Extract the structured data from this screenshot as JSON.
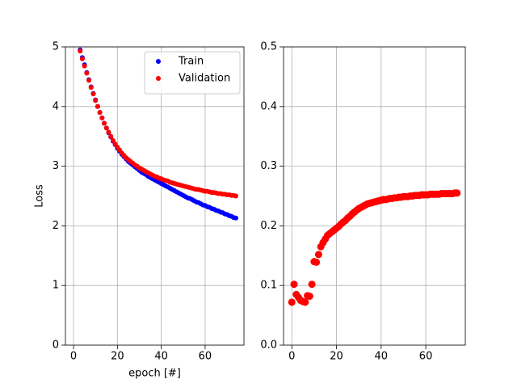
{
  "chart_data": [
    {
      "type": "scatter",
      "xlabel": "epoch [#]",
      "ylabel": "Loss",
      "x": [
        3,
        4,
        5,
        6,
        7,
        8,
        9,
        10,
        11,
        12,
        13,
        14,
        15,
        16,
        17,
        18,
        19,
        20,
        21,
        22,
        23,
        24,
        25,
        26,
        27,
        28,
        29,
        30,
        31,
        32,
        33,
        34,
        35,
        36,
        37,
        38,
        39,
        40,
        41,
        42,
        43,
        44,
        45,
        46,
        47,
        48,
        49,
        50,
        51,
        52,
        53,
        54,
        55,
        56,
        57,
        58,
        59,
        60,
        61,
        62,
        63,
        64,
        65,
        66,
        67,
        68,
        69,
        70,
        71,
        72,
        73,
        74
      ],
      "series": [
        {
          "name": "Train",
          "color": "#0000ff",
          "values": [
            4.95,
            4.82,
            4.7,
            4.57,
            4.45,
            4.33,
            4.22,
            4.11,
            4.0,
            3.9,
            3.81,
            3.72,
            3.64,
            3.56,
            3.49,
            3.42,
            3.36,
            3.3,
            3.25,
            3.2,
            3.16,
            3.12,
            3.08,
            3.05,
            3.02,
            2.99,
            2.96,
            2.93,
            2.9,
            2.88,
            2.86,
            2.83,
            2.81,
            2.79,
            2.77,
            2.75,
            2.73,
            2.71,
            2.69,
            2.67,
            2.65,
            2.63,
            2.61,
            2.59,
            2.57,
            2.55,
            2.53,
            2.51,
            2.49,
            2.47,
            2.46,
            2.44,
            2.42,
            2.4,
            2.39,
            2.37,
            2.35,
            2.34,
            2.32,
            2.31,
            2.29,
            2.28,
            2.26,
            2.25,
            2.23,
            2.22,
            2.2,
            2.19,
            2.17,
            2.16,
            2.14,
            2.13
          ]
        },
        {
          "name": "Validation",
          "color": "#ff0000",
          "values": [
            4.93,
            4.8,
            4.68,
            4.56,
            4.44,
            4.32,
            4.21,
            4.1,
            4.0,
            3.9,
            3.81,
            3.72,
            3.64,
            3.57,
            3.5,
            3.43,
            3.37,
            3.32,
            3.27,
            3.22,
            3.18,
            3.14,
            3.11,
            3.08,
            3.05,
            3.02,
            3.0,
            2.97,
            2.95,
            2.93,
            2.91,
            2.89,
            2.87,
            2.85,
            2.83,
            2.82,
            2.8,
            2.79,
            2.77,
            2.76,
            2.75,
            2.73,
            2.72,
            2.71,
            2.7,
            2.69,
            2.68,
            2.67,
            2.66,
            2.65,
            2.64,
            2.63,
            2.62,
            2.61,
            2.61,
            2.6,
            2.59,
            2.58,
            2.58,
            2.57,
            2.56,
            2.56,
            2.55,
            2.54,
            2.54,
            2.53,
            2.53,
            2.52,
            2.52,
            2.51,
            2.51,
            2.5
          ]
        }
      ],
      "xlim": [
        -3.7,
        77.7
      ],
      "xticks": [
        0,
        20,
        40,
        60
      ],
      "ylim": [
        0,
        5
      ],
      "yticks": [
        0,
        1,
        2,
        3,
        4,
        5
      ],
      "grid": true,
      "legend": "upper right"
    },
    {
      "type": "scatter",
      "x": [
        0,
        1,
        2,
        3,
        4,
        5,
        6,
        7,
        8,
        9,
        10,
        11,
        12,
        13,
        14,
        15,
        16,
        17,
        18,
        19,
        20,
        21,
        22,
        23,
        24,
        25,
        26,
        27,
        28,
        29,
        30,
        31,
        32,
        33,
        34,
        35,
        36,
        37,
        38,
        39,
        40,
        41,
        42,
        43,
        44,
        45,
        46,
        47,
        48,
        49,
        50,
        51,
        52,
        53,
        54,
        55,
        56,
        57,
        58,
        59,
        60,
        61,
        62,
        63,
        64,
        65,
        66,
        67,
        68,
        69,
        70,
        71,
        72,
        73,
        74
      ],
      "series": [
        {
          "color": "#ff0000",
          "values": [
            0.072,
            0.102,
            0.085,
            0.08,
            0.075,
            0.073,
            0.072,
            0.083,
            0.082,
            0.102,
            0.14,
            0.139,
            0.152,
            0.165,
            0.172,
            0.178,
            0.184,
            0.187,
            0.19,
            0.193,
            0.196,
            0.199,
            0.203,
            0.206,
            0.209,
            0.213,
            0.216,
            0.22,
            0.223,
            0.226,
            0.229,
            0.231,
            0.233,
            0.235,
            0.237,
            0.238,
            0.239,
            0.24,
            0.241,
            0.242,
            0.243,
            0.244,
            0.244,
            0.245,
            0.246,
            0.246,
            0.247,
            0.247,
            0.248,
            0.248,
            0.249,
            0.249,
            0.249,
            0.25,
            0.25,
            0.251,
            0.251,
            0.251,
            0.252,
            0.252,
            0.252,
            0.252,
            0.253,
            0.253,
            0.253,
            0.253,
            0.253,
            0.254,
            0.254,
            0.254,
            0.254,
            0.254,
            0.254,
            0.255,
            0.255
          ]
        }
      ],
      "xlim": [
        -3.7,
        77.7
      ],
      "xticks": [
        0,
        20,
        40,
        60
      ],
      "ylim": [
        0,
        0.5
      ],
      "yticks": [
        {
          "value": 0,
          "label": "0.0"
        },
        0.1,
        0.2,
        0.3,
        0.4,
        0.5
      ],
      "grid": true
    }
  ]
}
